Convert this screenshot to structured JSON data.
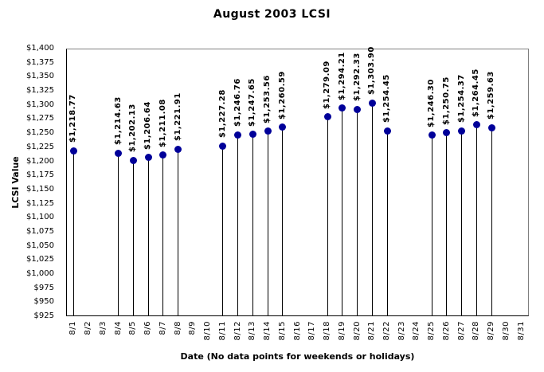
{
  "chart_data": {
    "type": "scatter",
    "variant": "stem-lollipop",
    "title": "August 2003 LCSI",
    "xlabel": "Date (No data points for weekends or holidays)",
    "ylabel": "LCSI Value",
    "ylim": [
      925,
      1400
    ],
    "ytick_step": 25,
    "ytick_labels": [
      "$1,400",
      "$1,375",
      "$1,350",
      "$1,325",
      "$1,300",
      "$1,275",
      "$1,250",
      "$1,225",
      "$1,200",
      "$1,175",
      "$1,150",
      "$1,125",
      "$1,100",
      "$1,075",
      "$1,050",
      "$1,025",
      "$1,000",
      "$975",
      "$950",
      "$925"
    ],
    "categories": [
      "8/1",
      "8/2",
      "8/3",
      "8/4",
      "8/5",
      "8/6",
      "8/7",
      "8/8",
      "8/9",
      "8/10",
      "8/11",
      "8/12",
      "8/13",
      "8/14",
      "8/15",
      "8/16",
      "8/17",
      "8/18",
      "8/19",
      "8/20",
      "8/21",
      "8/22",
      "8/23",
      "8/24",
      "8/25",
      "8/26",
      "8/27",
      "8/28",
      "8/29",
      "8/30",
      "8/31"
    ],
    "points": [
      {
        "date": "8/1",
        "value": 1218.77,
        "label": "$1,218.77"
      },
      {
        "date": "8/4",
        "value": 1214.63,
        "label": "$1,214.63"
      },
      {
        "date": "8/5",
        "value": 1202.13,
        "label": "$1,202.13"
      },
      {
        "date": "8/6",
        "value": 1206.64,
        "label": "$1,206.64"
      },
      {
        "date": "8/7",
        "value": 1211.08,
        "label": "$1,211.08"
      },
      {
        "date": "8/8",
        "value": 1221.91,
        "label": "$1,221.91"
      },
      {
        "date": "8/11",
        "value": 1227.28,
        "label": "$1,227.28"
      },
      {
        "date": "8/12",
        "value": 1246.76,
        "label": "$1,246.76"
      },
      {
        "date": "8/13",
        "value": 1247.65,
        "label": "$1,247.65"
      },
      {
        "date": "8/14",
        "value": 1253.56,
        "label": "$1,253.56"
      },
      {
        "date": "8/15",
        "value": 1260.59,
        "label": "$1,260.59"
      },
      {
        "date": "8/18",
        "value": 1279.09,
        "label": "$1,279.09"
      },
      {
        "date": "8/19",
        "value": 1294.21,
        "label": "$1,294.21"
      },
      {
        "date": "8/20",
        "value": 1292.33,
        "label": "$1,292.33"
      },
      {
        "date": "8/21",
        "value": 1303.9,
        "label": "$1,303.90"
      },
      {
        "date": "8/22",
        "value": 1254.45,
        "label": "$1,254.45"
      },
      {
        "date": "8/25",
        "value": 1246.3,
        "label": "$1,246.30"
      },
      {
        "date": "8/26",
        "value": 1250.75,
        "label": "$1,250.75"
      },
      {
        "date": "8/27",
        "value": 1254.37,
        "label": "$1,254.37"
      },
      {
        "date": "8/28",
        "value": 1264.45,
        "label": "$1,264.45"
      },
      {
        "date": "8/29",
        "value": 1259.63,
        "label": "$1,259.63"
      }
    ],
    "marker_color": "#000099",
    "stem_color": "#000000",
    "plot_border_color": "#808080",
    "axis_color": "#000000",
    "background": "#ffffff",
    "grid": false,
    "legend": "none"
  }
}
